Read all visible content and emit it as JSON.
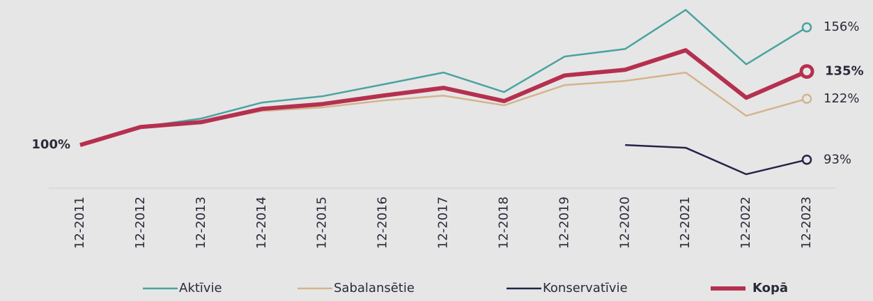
{
  "chart_data": {
    "type": "line",
    "categories": [
      "12-2011",
      "12-2012",
      "12-2013",
      "12-2014",
      "12-2015",
      "12-2016",
      "12-2017",
      "12-2018",
      "12-2019",
      "12-2020",
      "12-2021",
      "12-2022",
      "12-2023"
    ],
    "ylim": [
      79.5,
      169
    ],
    "series": [
      {
        "name": "Aktīvie",
        "color": "#4aa3a0",
        "values": [
          100,
          108.6,
          112.6,
          120.2,
          123.2,
          128.8,
          134.5,
          125.2,
          142.1,
          145.7,
          164.3,
          138.4,
          156
        ],
        "value_labels": [
          null,
          null,
          null,
          null,
          null,
          null,
          null,
          null,
          null,
          null,
          null,
          null,
          "156%"
        ]
      },
      {
        "name": "Sabalansētie",
        "color": "#d4b48c",
        "values": [
          100,
          108.6,
          110.6,
          116.2,
          117.9,
          121.2,
          123.5,
          118.9,
          128.5,
          130.5,
          134.5,
          113.9,
          122
        ],
        "value_labels": [
          null,
          null,
          null,
          null,
          null,
          null,
          null,
          null,
          null,
          null,
          null,
          null,
          "122%"
        ]
      },
      {
        "name": "Konservatīvie",
        "color": "#23234a",
        "values": [
          null,
          null,
          null,
          null,
          null,
          null,
          null,
          null,
          null,
          100,
          98.7,
          86.1,
          93
        ],
        "value_labels": [
          null,
          null,
          null,
          null,
          null,
          null,
          null,
          null,
          null,
          null,
          null,
          null,
          "93%"
        ]
      },
      {
        "name": "Kopā",
        "color": "#b5304f",
        "values": [
          100,
          108.6,
          110.9,
          117.2,
          119.5,
          123.5,
          127.2,
          120.9,
          133.1,
          135.8,
          145.1,
          122.5,
          135
        ],
        "value_labels": [
          "100%",
          null,
          null,
          null,
          null,
          null,
          null,
          null,
          null,
          null,
          null,
          null,
          "135%"
        ]
      }
    ]
  }
}
